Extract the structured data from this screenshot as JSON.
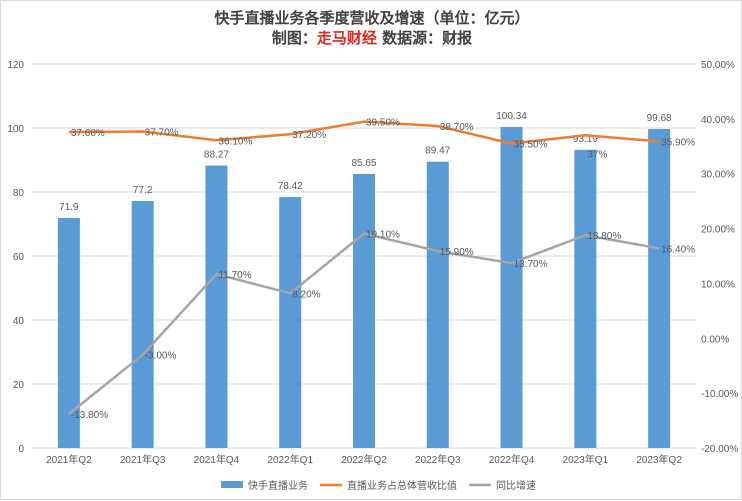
{
  "chart_data": {
    "type": "bar+line",
    "title": "快手直播业务各季度营收及增速（单位：亿元）",
    "subtitle": {
      "prefix": "制图：",
      "brand": "走马财经",
      "suffix": "数据源：财报"
    },
    "categories": [
      "2021年Q2",
      "2021年Q3",
      "2021年Q4",
      "2022年Q1",
      "2022年Q2",
      "2022年Q3",
      "2022年Q4",
      "2023年Q1",
      "2023年Q2"
    ],
    "series": [
      {
        "name": "快手直播业务",
        "type": "bar",
        "axis": "left",
        "color": "#5b9bd5",
        "values": [
          71.9,
          77.2,
          88.27,
          78.42,
          85.65,
          89.47,
          100.34,
          93.19,
          99.68
        ],
        "labels": [
          "71.9",
          "77.2",
          "88.27",
          "78.42",
          "85.65",
          "89.47",
          "100.34",
          "93.19",
          "99.68"
        ]
      },
      {
        "name": "直播业务占总体营收比值",
        "type": "line",
        "axis": "right",
        "color": "#ed7d31",
        "values": [
          37.6,
          37.7,
          36.1,
          37.2,
          39.5,
          38.7,
          35.5,
          37,
          35.9
        ],
        "labels": [
          "37.60%",
          "37.70%",
          "36.10%",
          "37.20%",
          "39.50%",
          "38.70%",
          "35.50%",
          "37%",
          "35.90%"
        ]
      },
      {
        "name": "同比增速",
        "type": "line",
        "axis": "right",
        "color": "#a5a5a5",
        "values": [
          -13.8,
          -3.0,
          11.7,
          8.2,
          19.1,
          15.9,
          13.7,
          18.8,
          16.4
        ],
        "labels": [
          "-13.80%",
          "-3.00%",
          "11.70%",
          "8.20%",
          "19.10%",
          "15.90%",
          "13.70%",
          "18.80%",
          "16.40%"
        ]
      }
    ],
    "left_axis": {
      "range": [
        0,
        120
      ],
      "ticks": [
        "0",
        "20",
        "40",
        "60",
        "80",
        "100",
        "120"
      ]
    },
    "right_axis": {
      "range": [
        -20,
        50
      ],
      "ticks": [
        "-20.00%",
        "-10.00%",
        "0.00%",
        "10.00%",
        "20.00%",
        "30.00%",
        "40.00%",
        "50.00%"
      ]
    },
    "grid": true,
    "legend": "bottom"
  }
}
